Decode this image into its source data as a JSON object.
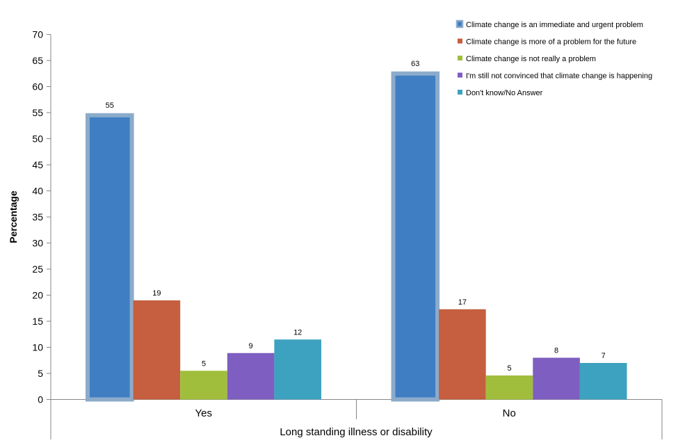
{
  "chart_data": {
    "type": "bar",
    "ylabel": "Percentage",
    "xlabel": "Long standing illness or disability",
    "categories": [
      "Yes",
      "No"
    ],
    "ylim": [
      0,
      70
    ],
    "ytick_step": 5,
    "grid": false,
    "legend_position": "top-right",
    "series": [
      {
        "name": "Climate change is an immediate and urgent problem",
        "values": [
          55,
          63
        ],
        "color": "#3F7EC2",
        "outline": "#8CABCB"
      },
      {
        "name": "Climate change is more of a problem for the future",
        "values": [
          19,
          17
        ],
        "color": "#C55F3F"
      },
      {
        "name": "Climate change is not really a problem",
        "values": [
          5,
          5
        ],
        "color": "#A0BE3C"
      },
      {
        "name": "I'm still not convinced that climate change is happening",
        "values": [
          9,
          8
        ],
        "color": "#7E5EC0"
      },
      {
        "name": "Don't know/No Answer",
        "values": [
          12,
          7
        ],
        "color": "#3DA2C0"
      }
    ],
    "plotted_heights": [
      [
        54.5,
        62.5
      ],
      [
        19,
        17.3
      ],
      [
        5.5,
        4.6
      ],
      [
        8.9,
        8
      ],
      [
        11.5,
        7
      ]
    ]
  }
}
